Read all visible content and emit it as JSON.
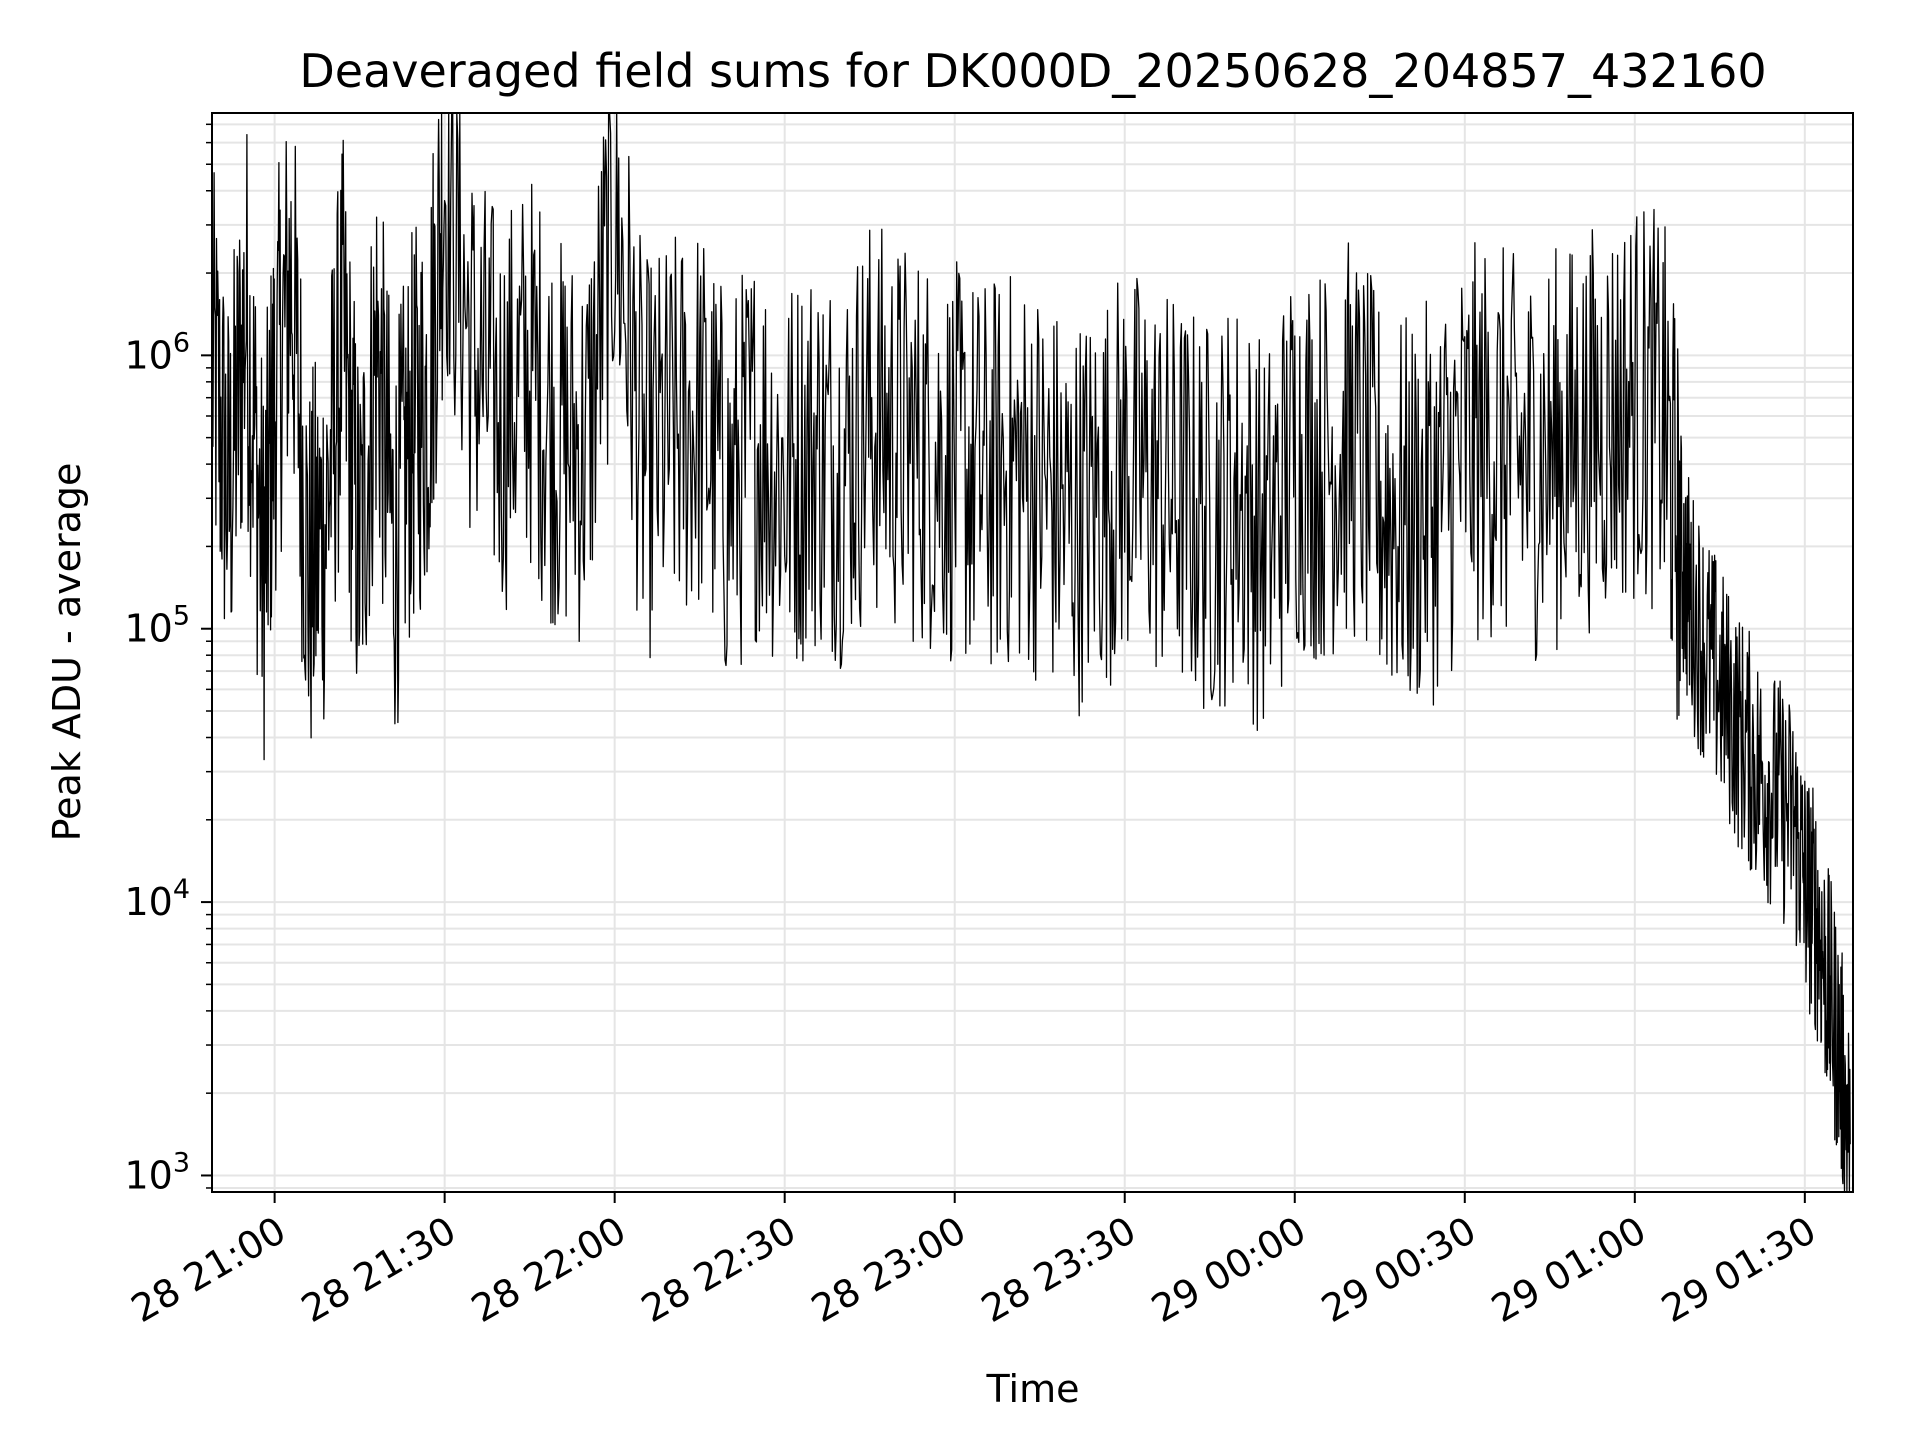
{
  "chart_data": {
    "type": "line",
    "title": "Deaveraged field sums for DK000D_20250628_204857_432160",
    "xlabel": "Time",
    "ylabel": "Peak ADU - average",
    "y_scale": "log",
    "ylim": [
      870,
      7700000
    ],
    "xlim": [
      "2025-06-28 20:48:57",
      "2025-06-29 01:38:30"
    ],
    "grid": true,
    "line_color": "#000000",
    "x_ticks": [
      {
        "value": "2025-06-28 21:00",
        "label": "28 21:00"
      },
      {
        "value": "2025-06-28 21:30",
        "label": "28 21:30"
      },
      {
        "value": "2025-06-28 22:00",
        "label": "28 22:00"
      },
      {
        "value": "2025-06-28 22:30",
        "label": "28 22:30"
      },
      {
        "value": "2025-06-28 23:00",
        "label": "28 23:00"
      },
      {
        "value": "2025-06-28 23:30",
        "label": "28 23:30"
      },
      {
        "value": "2025-06-29 00:00",
        "label": "29 00:00"
      },
      {
        "value": "2025-06-29 00:30",
        "label": "29 00:30"
      },
      {
        "value": "2025-06-29 01:00",
        "label": "29 01:00"
      },
      {
        "value": "2025-06-29 01:30",
        "label": "29 01:30"
      }
    ],
    "y_ticks": [
      {
        "value": 1000,
        "base": "10",
        "exp": "3"
      },
      {
        "value": 10000,
        "base": "10",
        "exp": "4"
      },
      {
        "value": 100000,
        "base": "10",
        "exp": "5"
      },
      {
        "value": 1000000,
        "base": "10",
        "exp": "6"
      }
    ],
    "series": [
      {
        "x": [
          "2025-06-28 20:49",
          "2025-06-28 20:52",
          "2025-06-28 20:55",
          "2025-06-28 20:58",
          "2025-06-28 21:00",
          "2025-06-28 21:03",
          "2025-06-28 21:06",
          "2025-06-28 21:09",
          "2025-06-28 21:12",
          "2025-06-28 21:15",
          "2025-06-28 21:18",
          "2025-06-28 21:21",
          "2025-06-28 21:24",
          "2025-06-28 21:27",
          "2025-06-28 21:30",
          "2025-06-28 21:35",
          "2025-06-28 21:40",
          "2025-06-28 21:45",
          "2025-06-28 21:50",
          "2025-06-28 21:55",
          "2025-06-28 22:00",
          "2025-06-28 22:05",
          "2025-06-28 22:10",
          "2025-06-28 22:15",
          "2025-06-28 22:20",
          "2025-06-28 22:25",
          "2025-06-28 22:30",
          "2025-06-28 22:35",
          "2025-06-28 22:40",
          "2025-06-28 22:45",
          "2025-06-28 22:50",
          "2025-06-28 22:55",
          "2025-06-28 23:00",
          "2025-06-28 23:05",
          "2025-06-28 23:10",
          "2025-06-28 23:15",
          "2025-06-28 23:20",
          "2025-06-28 23:25",
          "2025-06-28 23:30",
          "2025-06-28 23:35",
          "2025-06-28 23:40",
          "2025-06-28 23:45",
          "2025-06-28 23:50",
          "2025-06-28 23:55",
          "2025-06-29 00:00",
          "2025-06-29 00:05",
          "2025-06-29 00:10",
          "2025-06-29 00:15",
          "2025-06-29 00:20",
          "2025-06-29 00:25",
          "2025-06-29 00:30",
          "2025-06-29 00:35",
          "2025-06-29 00:40",
          "2025-06-29 00:45",
          "2025-06-29 00:50",
          "2025-06-29 00:55",
          "2025-06-29 01:00",
          "2025-06-29 01:05",
          "2025-06-29 01:08",
          "2025-06-29 01:10",
          "2025-06-29 01:13",
          "2025-06-29 01:16",
          "2025-06-29 01:19",
          "2025-06-29 01:22",
          "2025-06-29 01:25",
          "2025-06-29 01:28",
          "2025-06-29 01:30",
          "2025-06-29 01:32",
          "2025-06-29 01:34",
          "2025-06-29 01:36",
          "2025-06-29 01:38"
        ],
        "y": [
          950000,
          300000,
          1500000,
          160000,
          700000,
          2000000,
          150000,
          250000,
          1200000,
          180000,
          1100000,
          200000,
          500000,
          700000,
          4800000,
          1000000,
          600000,
          900000,
          500000,
          450000,
          3500000,
          400000,
          500000,
          600000,
          300000,
          500000,
          350000,
          450000,
          400000,
          600000,
          500000,
          450000,
          400000,
          350000,
          380000,
          350000,
          250000,
          300000,
          400000,
          350000,
          300000,
          250000,
          320000,
          200000,
          450000,
          400000,
          500000,
          300000,
          250000,
          300000,
          450000,
          500000,
          400000,
          450000,
          500000,
          600000,
          700000,
          600000,
          200000,
          120000,
          80000,
          55000,
          40000,
          30000,
          25000,
          20000,
          12000,
          9000,
          5000,
          3000,
          1300
        ]
      }
    ]
  }
}
